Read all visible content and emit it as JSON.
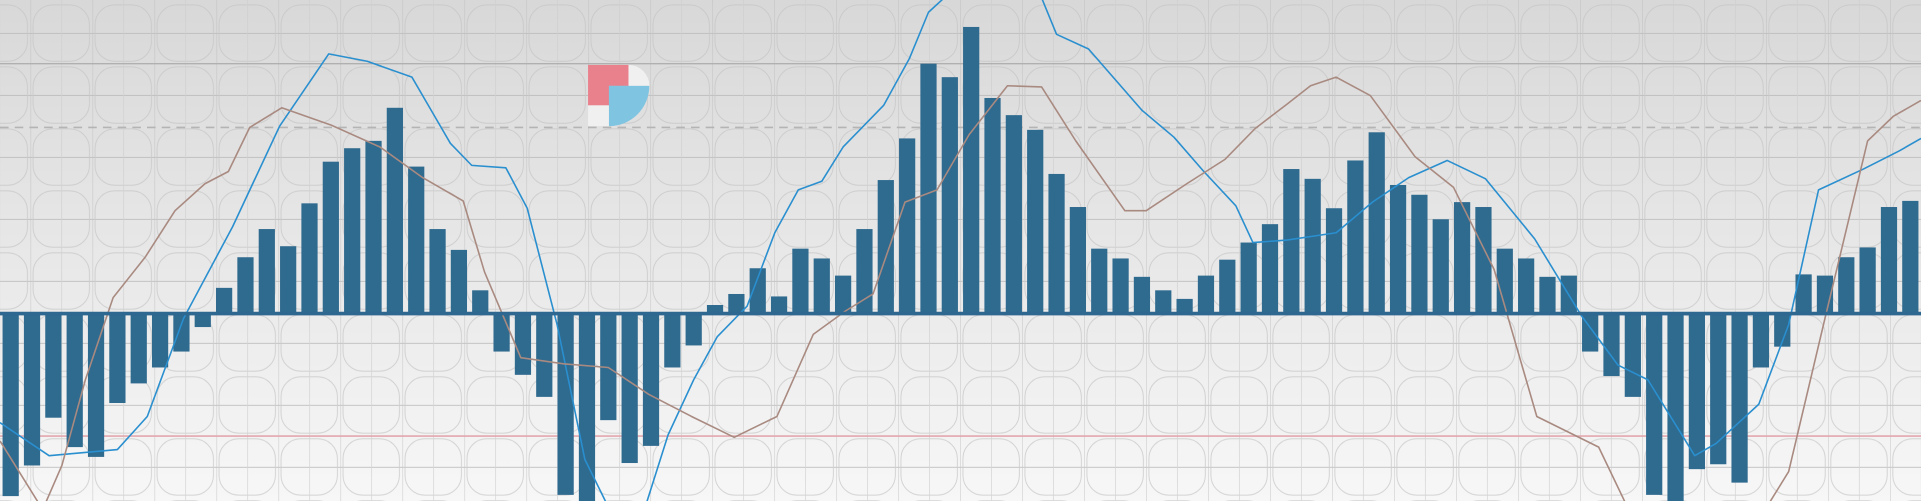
{
  "chart_data": {
    "type": "bar",
    "color": "#2f6a8f",
    "xlim": [
      0,
      90
    ],
    "ylim": [
      -153,
      256
    ],
    "values": [
      -149,
      -124,
      -85,
      -109,
      -117,
      -73,
      -57,
      -44,
      -31,
      -11,
      21,
      46,
      69,
      55,
      90,
      124,
      135,
      141,
      168,
      120,
      69,
      52,
      19,
      -31,
      -50,
      -68,
      -148,
      -153,
      -87,
      -122,
      -108,
      -44,
      -26,
      7,
      16,
      37,
      14,
      53,
      45,
      31,
      69,
      109,
      143,
      204,
      193,
      234,
      176,
      162,
      150,
      114,
      87,
      53,
      45,
      30,
      19,
      12,
      31,
      44,
      58,
      73,
      118,
      110,
      86,
      125,
      148,
      105,
      97,
      77,
      91,
      87,
      53,
      45,
      30,
      31,
      -31,
      -51,
      -68,
      -148,
      -153,
      -127,
      -123,
      -138,
      -44,
      -27,
      32,
      31,
      46,
      54,
      87,
      92
    ],
    "lines": [
      {
        "color": "#2a8fcf",
        "x": [
          0,
          2.3,
          5.5,
          6.9,
          8.6,
          10.9,
          13.1,
          15.4,
          17.2,
          19.3,
          20.2,
          21.1,
          22.1,
          23.7,
          24.7,
          26.1,
          27.4,
          28.7,
          30.1,
          31.3,
          32.5,
          33.6,
          35.0,
          36.3,
          37.4,
          38.5,
          39.5,
          41.4,
          42.6,
          43.5,
          44.5,
          48.7,
          49.5,
          51.0,
          52.0,
          53.5,
          55.0,
          56.4,
          57.9,
          58.7,
          60.3,
          62.6,
          64.3,
          66.0,
          67.8,
          69.6,
          71.9,
          74.1,
          75.8,
          77.2,
          79.4,
          80.4,
          82.4,
          83.8,
          85.2,
          87.3,
          89.0,
          90.0
        ],
        "values": [
          -89,
          -116,
          -111,
          -84,
          -4,
          71,
          153,
          212,
          206,
          193,
          166,
          139,
          121,
          119,
          86,
          -9,
          -119,
          -165,
          -165,
          -99,
          -54,
          -19,
          6,
          66,
          101,
          108,
          136,
          170,
          208,
          246,
          262,
          262,
          228,
          216,
          196,
          166,
          144,
          116,
          88,
          58,
          60,
          66,
          91,
          111,
          125,
          110,
          61,
          -2,
          -42,
          -54,
          -116,
          -106,
          -74,
          -9,
          101,
          118,
          133,
          143
        ]
      },
      {
        "color": "#a98a80",
        "x": [
          0,
          2.0,
          2.9,
          4.0,
          5.3,
          6.8,
          8.2,
          9.6,
          10.7,
          11.7,
          13.2,
          15.5,
          17.8,
          19.8,
          21.7,
          22.7,
          24.4,
          26.4,
          28.5,
          30.4,
          32.4,
          34.4,
          36.4,
          38.1,
          39.6,
          40.9,
          42.4,
          43.9,
          45.4,
          47.2,
          48.8,
          50.4,
          52.7,
          53.7,
          55.6,
          57.4,
          58.8,
          60.3,
          61.4,
          62.6,
          64.2,
          66.3,
          68.1,
          70.0,
          72.0,
          74.9,
          76.3,
          82.7,
          83.8,
          85.5,
          87.5,
          88.7,
          90.0
        ],
        "values": [
          -104,
          -160,
          -124,
          -54,
          13,
          46,
          84,
          106,
          116,
          152,
          168,
          154,
          136,
          111,
          92,
          34,
          -36,
          -41,
          -44,
          -66,
          -84,
          -101,
          -84,
          -17,
          2,
          16,
          91,
          101,
          146,
          186,
          185,
          141,
          84,
          84,
          106,
          126,
          151,
          171,
          186,
          193,
          178,
          128,
          103,
          36,
          -84,
          -109,
          -160,
          -160,
          -129,
          -4,
          141,
          161,
          174
        ]
      }
    ],
    "reference_lines": [
      {
        "value": 152,
        "color": "#b4b4b4",
        "style": "dashed"
      },
      {
        "value": -100,
        "color": "#e3a7ae",
        "style": "solid"
      }
    ]
  }
}
